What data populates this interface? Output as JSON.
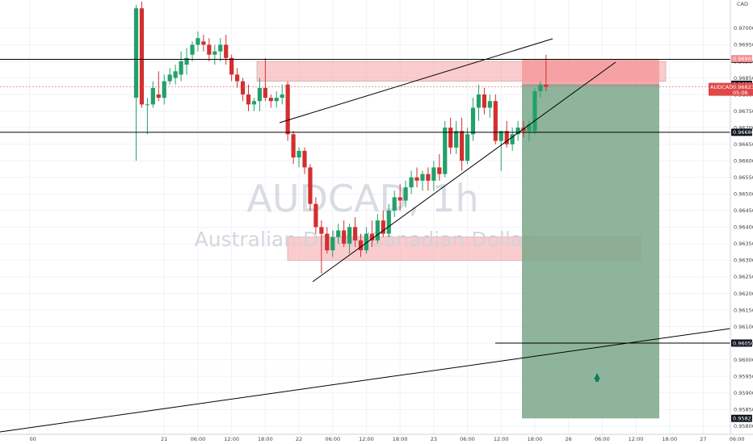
{
  "chart_data": {
    "type": "candlestick",
    "symbol": "AUDCAD",
    "interval_label": "AUDCAD, 1h",
    "description": "Australian Dollar/Canadian Dollar",
    "currency_label": "CAD",
    "price_axis": {
      "ylim": [
        0.95775,
        0.97085
      ],
      "ticks": [
        0.97,
        0.9695,
        0.969,
        0.9685,
        0.968,
        0.9675,
        0.967,
        0.9665,
        0.966,
        0.9655,
        0.965,
        0.9645,
        0.964,
        0.9635,
        0.963,
        0.9625,
        0.962,
        0.9615,
        0.961,
        0.9605,
        0.96,
        0.9595,
        0.959,
        0.9585,
        0.958
      ]
    },
    "time_axis": {
      "labels": [
        "00",
        "21",
        "06:00",
        "12:00",
        "18:00",
        "22",
        "06:00",
        "12:00",
        "18:00",
        "23",
        "06:00",
        "12:00",
        "18:00",
        "26",
        "06:00",
        "12:00",
        "18:00",
        "27",
        "06:00",
        "12:00"
      ],
      "label_index": [
        -19,
        5,
        11,
        17,
        23,
        29,
        35,
        41,
        47,
        53,
        59,
        65,
        71,
        77,
        83,
        89,
        95,
        101,
        107,
        113
      ]
    },
    "candles": [
      {
        "i": 0,
        "o": 0.9679,
        "h": 0.9707,
        "l": 0.966,
        "c": 0.9706
      },
      {
        "i": 1,
        "o": 0.9706,
        "h": 0.9708,
        "l": 0.9676,
        "c": 0.9677
      },
      {
        "i": 2,
        "o": 0.9677,
        "h": 0.9679,
        "l": 0.9668,
        "c": 0.9677
      },
      {
        "i": 3,
        "o": 0.9677,
        "h": 0.9684,
        "l": 0.9676,
        "c": 0.9682
      },
      {
        "i": 4,
        "o": 0.968,
        "h": 0.9687,
        "l": 0.9678,
        "c": 0.9679
      },
      {
        "i": 5,
        "o": 0.9679,
        "h": 0.9686,
        "l": 0.9677,
        "c": 0.9684
      },
      {
        "i": 6,
        "o": 0.9684,
        "h": 0.9688,
        "l": 0.9683,
        "c": 0.9686
      },
      {
        "i": 7,
        "o": 0.9685,
        "h": 0.9689,
        "l": 0.9683,
        "c": 0.9687
      },
      {
        "i": 8,
        "o": 0.9686,
        "h": 0.9693,
        "l": 0.9684,
        "c": 0.969
      },
      {
        "i": 9,
        "o": 0.9689,
        "h": 0.9694,
        "l": 0.9686,
        "c": 0.9691
      },
      {
        "i": 10,
        "o": 0.9692,
        "h": 0.9696,
        "l": 0.969,
        "c": 0.9695
      },
      {
        "i": 11,
        "o": 0.9695,
        "h": 0.9699,
        "l": 0.9693,
        "c": 0.9697
      },
      {
        "i": 12,
        "o": 0.9696,
        "h": 0.9698,
        "l": 0.9693,
        "c": 0.9695
      },
      {
        "i": 13,
        "o": 0.9695,
        "h": 0.9697,
        "l": 0.969,
        "c": 0.9692
      },
      {
        "i": 14,
        "o": 0.9692,
        "h": 0.9695,
        "l": 0.9689,
        "c": 0.9693
      },
      {
        "i": 15,
        "o": 0.9693,
        "h": 0.9697,
        "l": 0.969,
        "c": 0.9695
      },
      {
        "i": 16,
        "o": 0.9695,
        "h": 0.9698,
        "l": 0.9689,
        "c": 0.9691
      },
      {
        "i": 17,
        "o": 0.9691,
        "h": 0.9692,
        "l": 0.9684,
        "c": 0.9686
      },
      {
        "i": 18,
        "o": 0.9686,
        "h": 0.9688,
        "l": 0.9682,
        "c": 0.9684
      },
      {
        "i": 19,
        "o": 0.9684,
        "h": 0.9685,
        "l": 0.9678,
        "c": 0.968
      },
      {
        "i": 20,
        "o": 0.968,
        "h": 0.9683,
        "l": 0.9675,
        "c": 0.9677
      },
      {
        "i": 21,
        "o": 0.9677,
        "h": 0.9679,
        "l": 0.9675,
        "c": 0.9678
      },
      {
        "i": 22,
        "o": 0.9678,
        "h": 0.9685,
        "l": 0.9675,
        "c": 0.9682
      },
      {
        "i": 23,
        "o": 0.9682,
        "h": 0.9691,
        "l": 0.9678,
        "c": 0.9679
      },
      {
        "i": 24,
        "o": 0.9679,
        "h": 0.968,
        "l": 0.9676,
        "c": 0.9678
      },
      {
        "i": 25,
        "o": 0.9678,
        "h": 0.9681,
        "l": 0.9676,
        "c": 0.9679
      },
      {
        "i": 26,
        "o": 0.9679,
        "h": 0.9683,
        "l": 0.9677,
        "c": 0.968
      },
      {
        "i": 27,
        "o": 0.9683,
        "h": 0.9684,
        "l": 0.9666,
        "c": 0.9668
      },
      {
        "i": 28,
        "o": 0.9668,
        "h": 0.9669,
        "l": 0.9659,
        "c": 0.9661
      },
      {
        "i": 29,
        "o": 0.9661,
        "h": 0.9664,
        "l": 0.9658,
        "c": 0.9663
      },
      {
        "i": 30,
        "o": 0.9663,
        "h": 0.9664,
        "l": 0.9656,
        "c": 0.9658
      },
      {
        "i": 31,
        "o": 0.9658,
        "h": 0.9659,
        "l": 0.9645,
        "c": 0.9647
      },
      {
        "i": 32,
        "o": 0.9647,
        "h": 0.9649,
        "l": 0.9638,
        "c": 0.964
      },
      {
        "i": 33,
        "o": 0.964,
        "h": 0.9642,
        "l": 0.9626,
        "c": 0.9638
      },
      {
        "i": 34,
        "o": 0.9638,
        "h": 0.964,
        "l": 0.9632,
        "c": 0.9633
      },
      {
        "i": 35,
        "o": 0.9633,
        "h": 0.9639,
        "l": 0.9631,
        "c": 0.9637
      },
      {
        "i": 36,
        "o": 0.9637,
        "h": 0.9641,
        "l": 0.9635,
        "c": 0.9639
      },
      {
        "i": 37,
        "o": 0.9639,
        "h": 0.9642,
        "l": 0.9634,
        "c": 0.9635
      },
      {
        "i": 38,
        "o": 0.9635,
        "h": 0.9641,
        "l": 0.9632,
        "c": 0.964
      },
      {
        "i": 39,
        "o": 0.964,
        "h": 0.9643,
        "l": 0.9634,
        "c": 0.9636
      },
      {
        "i": 40,
        "o": 0.9636,
        "h": 0.9638,
        "l": 0.9631,
        "c": 0.9633
      },
      {
        "i": 41,
        "o": 0.9633,
        "h": 0.964,
        "l": 0.9632,
        "c": 0.9638
      },
      {
        "i": 42,
        "o": 0.9638,
        "h": 0.9642,
        "l": 0.9634,
        "c": 0.9636
      },
      {
        "i": 43,
        "o": 0.9636,
        "h": 0.9644,
        "l": 0.9635,
        "c": 0.9642
      },
      {
        "i": 44,
        "o": 0.9642,
        "h": 0.9645,
        "l": 0.9637,
        "c": 0.9638
      },
      {
        "i": 45,
        "o": 0.9638,
        "h": 0.9647,
        "l": 0.9637,
        "c": 0.9645
      },
      {
        "i": 46,
        "o": 0.9645,
        "h": 0.9651,
        "l": 0.9643,
        "c": 0.9649
      },
      {
        "i": 47,
        "o": 0.9649,
        "h": 0.9653,
        "l": 0.9645,
        "c": 0.9648
      },
      {
        "i": 48,
        "o": 0.9648,
        "h": 0.9654,
        "l": 0.9646,
        "c": 0.9652
      },
      {
        "i": 49,
        "o": 0.9652,
        "h": 0.9657,
        "l": 0.965,
        "c": 0.9655
      },
      {
        "i": 50,
        "o": 0.9655,
        "h": 0.9658,
        "l": 0.9652,
        "c": 0.9654
      },
      {
        "i": 51,
        "o": 0.9654,
        "h": 0.9657,
        "l": 0.9651,
        "c": 0.9656
      },
      {
        "i": 52,
        "o": 0.9656,
        "h": 0.9658,
        "l": 0.9651,
        "c": 0.9654
      },
      {
        "i": 53,
        "o": 0.9654,
        "h": 0.966,
        "l": 0.9651,
        "c": 0.9658
      },
      {
        "i": 54,
        "o": 0.9658,
        "h": 0.9662,
        "l": 0.9654,
        "c": 0.9656
      },
      {
        "i": 55,
        "o": 0.9656,
        "h": 0.9672,
        "l": 0.9655,
        "c": 0.967
      },
      {
        "i": 56,
        "o": 0.967,
        "h": 0.9673,
        "l": 0.9662,
        "c": 0.9664
      },
      {
        "i": 57,
        "o": 0.9664,
        "h": 0.9672,
        "l": 0.9662,
        "c": 0.9669
      },
      {
        "i": 58,
        "o": 0.9669,
        "h": 0.9673,
        "l": 0.9657,
        "c": 0.966
      },
      {
        "i": 59,
        "o": 0.966,
        "h": 0.967,
        "l": 0.9659,
        "c": 0.9668
      },
      {
        "i": 60,
        "o": 0.9668,
        "h": 0.9679,
        "l": 0.9666,
        "c": 0.9676
      },
      {
        "i": 61,
        "o": 0.9676,
        "h": 0.9683,
        "l": 0.9672,
        "c": 0.968
      },
      {
        "i": 62,
        "o": 0.968,
        "h": 0.9682,
        "l": 0.9674,
        "c": 0.9676
      },
      {
        "i": 63,
        "o": 0.9676,
        "h": 0.968,
        "l": 0.9673,
        "c": 0.9678
      },
      {
        "i": 64,
        "o": 0.9678,
        "h": 0.968,
        "l": 0.9665,
        "c": 0.9666
      },
      {
        "i": 65,
        "o": 0.9666,
        "h": 0.9669,
        "l": 0.9657,
        "c": 0.9669
      },
      {
        "i": 66,
        "o": 0.9669,
        "h": 0.9672,
        "l": 0.9664,
        "c": 0.9665
      },
      {
        "i": 67,
        "o": 0.9665,
        "h": 0.967,
        "l": 0.9663,
        "c": 0.9668
      },
      {
        "i": 68,
        "o": 0.9668,
        "h": 0.9672,
        "l": 0.9666,
        "c": 0.967
      },
      {
        "i": 69,
        "o": 0.967,
        "h": 0.9672,
        "l": 0.9667,
        "c": 0.9669
      },
      {
        "i": 70,
        "o": 0.9669,
        "h": 0.9672,
        "l": 0.9666,
        "c": 0.9671
      },
      {
        "i": 71,
        "o": 0.9669,
        "h": 0.9682,
        "l": 0.9668,
        "c": 0.9681
      },
      {
        "i": 72,
        "o": 0.9681,
        "h": 0.9684,
        "l": 0.9679,
        "c": 0.9683
      },
      {
        "i": 73,
        "o": 0.9683,
        "h": 0.9692,
        "l": 0.9681,
        "c": 0.96823
      }
    ],
    "levels": [
      {
        "price": 0.96906,
        "label": "0.96906",
        "style": "horizontal-line"
      },
      {
        "price": 0.96686,
        "label": "0.96686",
        "style": "horizontal-line"
      },
      {
        "price": 0.9605,
        "label": "0.96050",
        "style": "ray"
      }
    ],
    "current_price": {
      "label": "AUDCAD",
      "value": "0.96823",
      "countdown": "05:06"
    },
    "position": {
      "side": "short",
      "stop": "0.96905",
      "entry": "0.96829",
      "target": "0.95823"
    },
    "zones": [
      {
        "name": "resistance-zone",
        "from": 0.969,
        "to": 0.9684
      },
      {
        "name": "support-zone",
        "from": 0.9637,
        "to": 0.963
      }
    ],
    "arrow": "up"
  }
}
